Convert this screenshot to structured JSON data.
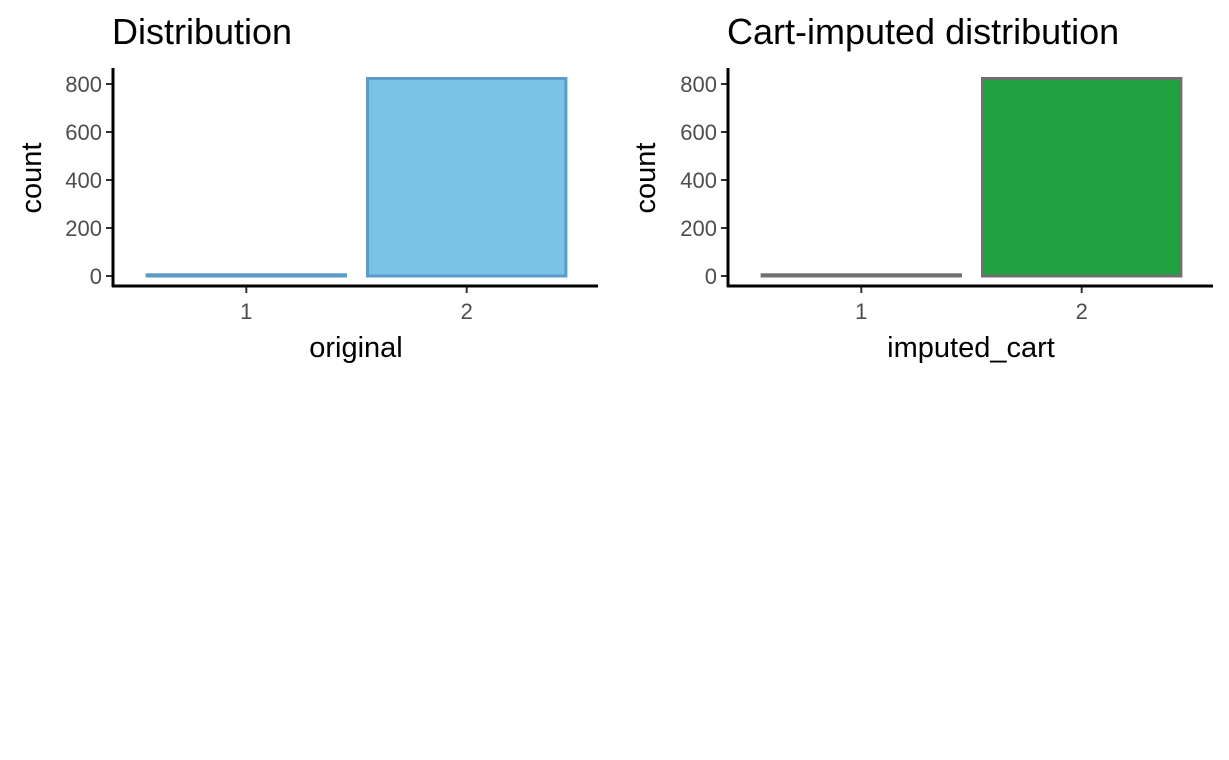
{
  "chart_data": [
    {
      "type": "bar",
      "title": "Distribution",
      "xlabel": "original",
      "ylabel": "count",
      "categories": [
        "1",
        "2"
      ],
      "values": [
        5,
        823
      ],
      "yticks": [
        0,
        200,
        400,
        600,
        800
      ],
      "ylim": [
        0,
        860
      ],
      "grid": false,
      "fill_color": "#7BC3E6",
      "border_color": "#5B9BC8"
    },
    {
      "type": "bar",
      "title": "Cart-imputed distribution",
      "xlabel": "imputed_cart",
      "ylabel": "count",
      "categories": [
        "1",
        "2"
      ],
      "values": [
        5,
        823
      ],
      "yticks": [
        0,
        200,
        400,
        600,
        800
      ],
      "ylim": [
        0,
        860
      ],
      "grid": false,
      "fill_color": "#1FA23F",
      "border_color": "#707070"
    }
  ]
}
